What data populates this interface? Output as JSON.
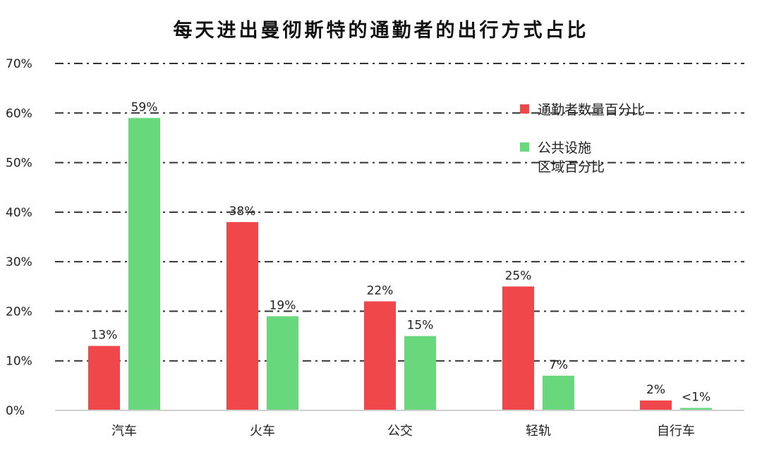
{
  "chart_data": {
    "type": "bar",
    "title": "每天进出曼彻斯特的通勤者的出行方式占比",
    "categories": [
      "汽车",
      "火车",
      "公交",
      "轻轨",
      "自行车"
    ],
    "yticks": [
      "0%",
      "10%",
      "20%",
      "30%",
      "40%",
      "50%",
      "60%",
      "70%"
    ],
    "ylim": [
      0,
      70
    ],
    "grid": true,
    "legend_position": "top-right",
    "series": [
      {
        "name": "通勤者数量百分比",
        "color": "#f0474b",
        "values": [
          13,
          38,
          22,
          25,
          2
        ],
        "labels": [
          "13%",
          "38%",
          "22%",
          "25%",
          "2%"
        ]
      },
      {
        "name": "公共设施\n区域百分比",
        "color": "#69d77b",
        "values": [
          59,
          19,
          15,
          7,
          0.5
        ],
        "labels": [
          "59%",
          "19%",
          "15%",
          "7%",
          "<1%"
        ]
      }
    ]
  }
}
